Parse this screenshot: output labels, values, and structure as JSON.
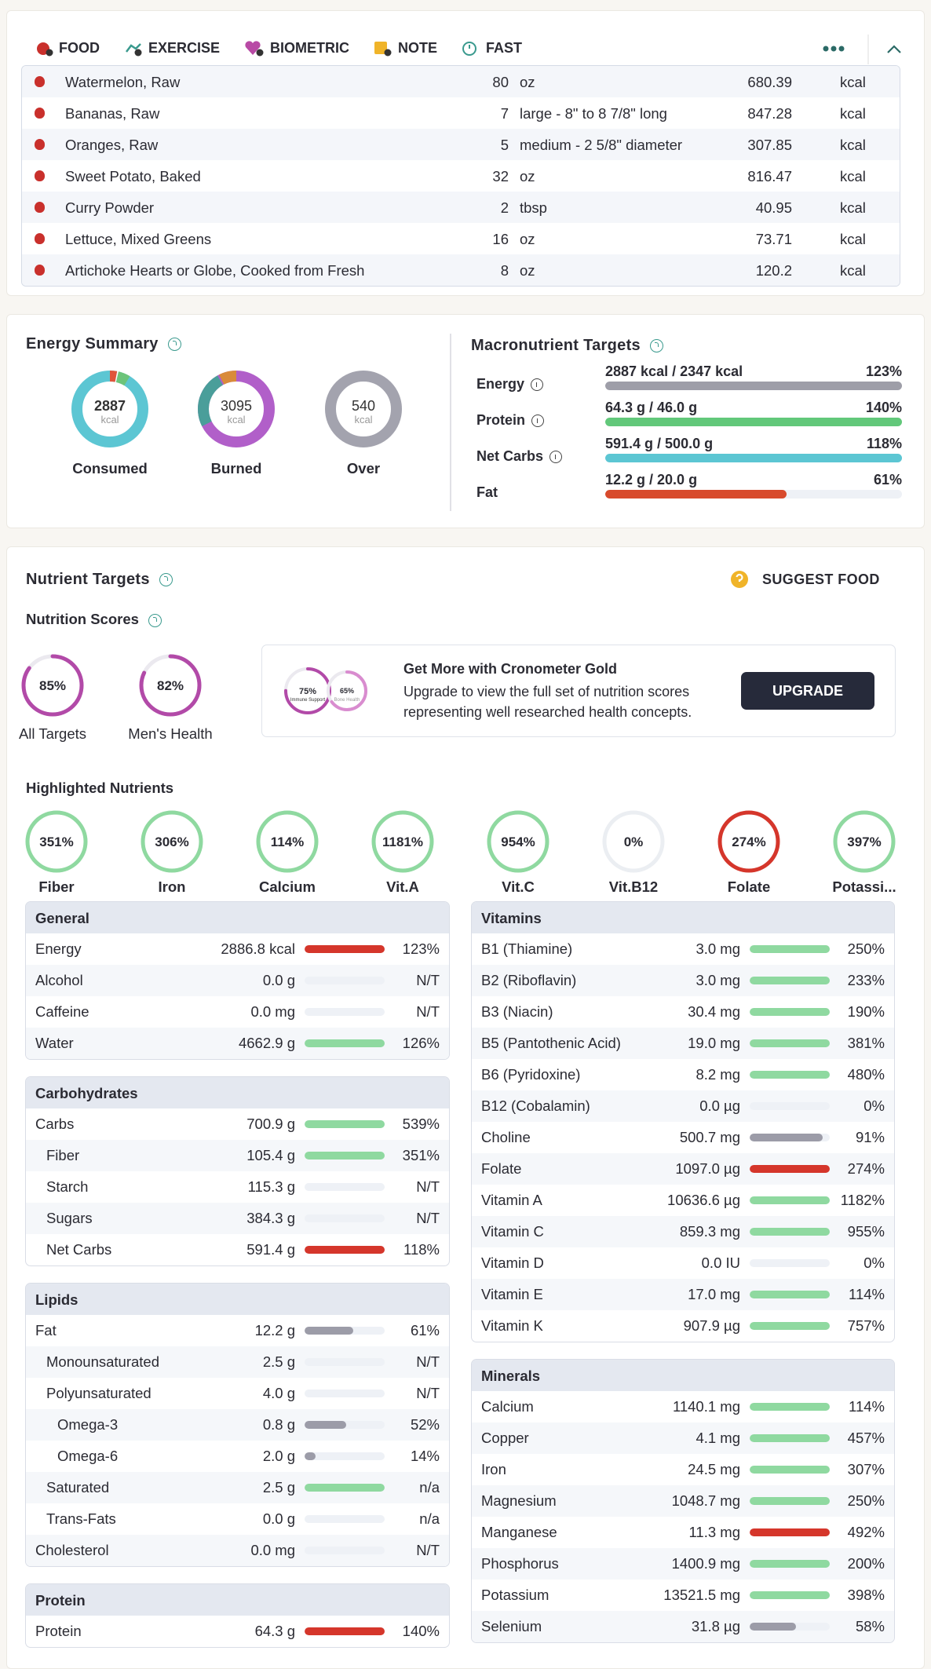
{
  "tabs": [
    "FOOD",
    "EXERCISE",
    "BIOMETRIC",
    "NOTE",
    "FAST"
  ],
  "foods": [
    {
      "name": "Watermelon, Raw",
      "amount": "80",
      "unit": "oz",
      "energy": "680.39",
      "energy_unit": "kcal"
    },
    {
      "name": "Bananas, Raw",
      "amount": "7",
      "unit": "large - 8\" to 8 7/8\" long",
      "energy": "847.28",
      "energy_unit": "kcal"
    },
    {
      "name": "Oranges, Raw",
      "amount": "5",
      "unit": "medium - 2 5/8\" diameter",
      "energy": "307.85",
      "energy_unit": "kcal"
    },
    {
      "name": "Sweet Potato, Baked",
      "amount": "32",
      "unit": "oz",
      "energy": "816.47",
      "energy_unit": "kcal"
    },
    {
      "name": "Curry Powder",
      "amount": "2",
      "unit": "tbsp",
      "energy": "40.95",
      "energy_unit": "kcal"
    },
    {
      "name": "Lettuce, Mixed Greens",
      "amount": "16",
      "unit": "oz",
      "energy": "73.71",
      "energy_unit": "kcal"
    },
    {
      "name": "Artichoke Hearts or Globe, Cooked from Fresh",
      "amount": "8",
      "unit": "oz",
      "energy": "120.2",
      "energy_unit": "kcal"
    }
  ],
  "energy_summary": {
    "title": "Energy Summary",
    "rings": [
      {
        "value": "2887",
        "unit": "kcal",
        "label": "Consumed"
      },
      {
        "value": "3095",
        "unit": "kcal",
        "label": "Burned"
      },
      {
        "value": "540",
        "unit": "kcal",
        "label": "Over"
      }
    ]
  },
  "macros": {
    "title": "Macronutrient Targets",
    "rows": [
      {
        "name": "Energy",
        "detail": "2887 kcal / 2347 kcal",
        "pct": 123,
        "pct_label": "123%",
        "color": "#9e9ea8"
      },
      {
        "name": "Protein",
        "detail": "64.3 g / 46.0 g",
        "pct": 140,
        "pct_label": "140%",
        "color": "#62c87a"
      },
      {
        "name": "Net Carbs",
        "detail": "591.4 g / 500.0 g",
        "pct": 118,
        "pct_label": "118%",
        "color": "#5cc6d3"
      },
      {
        "name": "Fat",
        "detail": "12.2 g / 20.0 g",
        "pct": 61,
        "pct_label": "61%",
        "color": "#d84a2c"
      }
    ]
  },
  "nutrient_targets": {
    "title": "Nutrient Targets",
    "suggest": "SUGGEST FOOD",
    "scores_title": "Nutrition Scores",
    "scores": [
      {
        "pct": 85,
        "pct_label": "85%",
        "label": "All Targets"
      },
      {
        "pct": 82,
        "pct_label": "82%",
        "label": "Men's Health"
      }
    ],
    "promo": {
      "title": "Get More with Cronometer Gold",
      "text": "Upgrade to view the full set of nutrition scores representing well researched health concepts.",
      "button": "UPGRADE",
      "preview": [
        {
          "pct": 75,
          "pct_label": "75%",
          "label": "Immune Support"
        },
        {
          "pct": 65,
          "pct_label": "65%",
          "label": "Bone Health"
        }
      ]
    },
    "highlighted_title": "Highlighted Nutrients",
    "highlighted": [
      {
        "name": "Fiber",
        "pct": 351,
        "pct_label": "351%",
        "color": "#8fd9a0"
      },
      {
        "name": "Iron",
        "pct": 306,
        "pct_label": "306%",
        "color": "#8fd9a0"
      },
      {
        "name": "Calcium",
        "pct": 114,
        "pct_label": "114%",
        "color": "#8fd9a0"
      },
      {
        "name": "Vit.A",
        "pct": 1181,
        "pct_label": "1181%",
        "color": "#8fd9a0"
      },
      {
        "name": "Vit.C",
        "pct": 954,
        "pct_label": "954%",
        "color": "#8fd9a0"
      },
      {
        "name": "Vit.B12",
        "pct": 0,
        "pct_label": "0%",
        "color": "#8fd9a0"
      },
      {
        "name": "Folate",
        "pct": 274,
        "pct_label": "274%",
        "color": "#d5362b"
      },
      {
        "name": "Potassi...",
        "pct": 397,
        "pct_label": "397%",
        "color": "#8fd9a0"
      }
    ]
  },
  "tables": [
    {
      "title": "General",
      "column": "left",
      "rows": [
        {
          "name": "Energy",
          "amount": "2886.8 kcal",
          "pct": 123,
          "pct_label": "123%",
          "color": "#d5362b",
          "indent": 0
        },
        {
          "name": "Alcohol",
          "amount": "0.0 g",
          "pct": null,
          "pct_label": "N/T",
          "color": "#8fd9a0",
          "indent": 0
        },
        {
          "name": "Caffeine",
          "amount": "0.0 mg",
          "pct": null,
          "pct_label": "N/T",
          "color": "#8fd9a0",
          "indent": 0
        },
        {
          "name": "Water",
          "amount": "4662.9 g",
          "pct": 126,
          "pct_label": "126%",
          "color": "#8fd9a0",
          "indent": 0
        }
      ]
    },
    {
      "title": "Carbohydrates",
      "column": "left",
      "rows": [
        {
          "name": "Carbs",
          "amount": "700.9 g",
          "pct": 539,
          "pct_label": "539%",
          "color": "#8fd9a0",
          "indent": 0
        },
        {
          "name": "Fiber",
          "amount": "105.4 g",
          "pct": 351,
          "pct_label": "351%",
          "color": "#8fd9a0",
          "indent": 1
        },
        {
          "name": "Starch",
          "amount": "115.3 g",
          "pct": null,
          "pct_label": "N/T",
          "color": "#8fd9a0",
          "indent": 1
        },
        {
          "name": "Sugars",
          "amount": "384.3 g",
          "pct": null,
          "pct_label": "N/T",
          "color": "#8fd9a0",
          "indent": 1
        },
        {
          "name": "Net Carbs",
          "amount": "591.4 g",
          "pct": 118,
          "pct_label": "118%",
          "color": "#d5362b",
          "indent": 1
        }
      ]
    },
    {
      "title": "Lipids",
      "column": "left",
      "rows": [
        {
          "name": "Fat",
          "amount": "12.2 g",
          "pct": 61,
          "pct_label": "61%",
          "color": "#9c9ca8",
          "indent": 0
        },
        {
          "name": "Monounsaturated",
          "amount": "2.5 g",
          "pct": null,
          "pct_label": "N/T",
          "color": "#8fd9a0",
          "indent": 1
        },
        {
          "name": "Polyunsaturated",
          "amount": "4.0 g",
          "pct": null,
          "pct_label": "N/T",
          "color": "#8fd9a0",
          "indent": 1
        },
        {
          "name": "Omega-3",
          "amount": "0.8 g",
          "pct": 52,
          "pct_label": "52%",
          "color": "#9c9ca8",
          "indent": 2
        },
        {
          "name": "Omega-6",
          "amount": "2.0 g",
          "pct": 14,
          "pct_label": "14%",
          "color": "#9c9ca8",
          "indent": 2
        },
        {
          "name": "Saturated",
          "amount": "2.5 g",
          "pct": null,
          "pct_label": "n/a",
          "color": "#8fd9a0",
          "indent": 1,
          "full_bar": true
        },
        {
          "name": "Trans-Fats",
          "amount": "0.0 g",
          "pct": null,
          "pct_label": "n/a",
          "color": "#8fd9a0",
          "indent": 1
        },
        {
          "name": "Cholesterol",
          "amount": "0.0 mg",
          "pct": null,
          "pct_label": "N/T",
          "color": "#8fd9a0",
          "indent": 0
        }
      ]
    },
    {
      "title": "Protein",
      "column": "left",
      "rows": [
        {
          "name": "Protein",
          "amount": "64.3 g",
          "pct": 140,
          "pct_label": "140%",
          "color": "#d5362b",
          "indent": 0
        }
      ]
    },
    {
      "title": "Vitamins",
      "column": "right",
      "rows": [
        {
          "name": "B1 (Thiamine)",
          "amount": "3.0 mg",
          "pct": 250,
          "pct_label": "250%",
          "color": "#8fd9a0",
          "indent": 0
        },
        {
          "name": "B2 (Riboflavin)",
          "amount": "3.0 mg",
          "pct": 233,
          "pct_label": "233%",
          "color": "#8fd9a0",
          "indent": 0
        },
        {
          "name": "B3 (Niacin)",
          "amount": "30.4 mg",
          "pct": 190,
          "pct_label": "190%",
          "color": "#8fd9a0",
          "indent": 0
        },
        {
          "name": "B5 (Pantothenic Acid)",
          "amount": "19.0 mg",
          "pct": 381,
          "pct_label": "381%",
          "color": "#8fd9a0",
          "indent": 0
        },
        {
          "name": "B6 (Pyridoxine)",
          "amount": "8.2 mg",
          "pct": 480,
          "pct_label": "480%",
          "color": "#8fd9a0",
          "indent": 0
        },
        {
          "name": "B12 (Cobalamin)",
          "amount": "0.0 µg",
          "pct": 0,
          "pct_label": "0%",
          "color": "#8fd9a0",
          "indent": 0
        },
        {
          "name": "Choline",
          "amount": "500.7 mg",
          "pct": 91,
          "pct_label": "91%",
          "color": "#9c9ca8",
          "indent": 0
        },
        {
          "name": "Folate",
          "amount": "1097.0 µg",
          "pct": 274,
          "pct_label": "274%",
          "color": "#d5362b",
          "indent": 0
        },
        {
          "name": "Vitamin A",
          "amount": "10636.6 µg",
          "pct": 1182,
          "pct_label": "1182%",
          "color": "#8fd9a0",
          "indent": 0
        },
        {
          "name": "Vitamin C",
          "amount": "859.3 mg",
          "pct": 955,
          "pct_label": "955%",
          "color": "#8fd9a0",
          "indent": 0
        },
        {
          "name": "Vitamin D",
          "amount": "0.0 IU",
          "pct": 0,
          "pct_label": "0%",
          "color": "#8fd9a0",
          "indent": 0
        },
        {
          "name": "Vitamin E",
          "amount": "17.0 mg",
          "pct": 114,
          "pct_label": "114%",
          "color": "#8fd9a0",
          "indent": 0
        },
        {
          "name": "Vitamin K",
          "amount": "907.9 µg",
          "pct": 757,
          "pct_label": "757%",
          "color": "#8fd9a0",
          "indent": 0
        }
      ]
    },
    {
      "title": "Minerals",
      "column": "right",
      "rows": [
        {
          "name": "Calcium",
          "amount": "1140.1 mg",
          "pct": 114,
          "pct_label": "114%",
          "color": "#8fd9a0",
          "indent": 0
        },
        {
          "name": "Copper",
          "amount": "4.1 mg",
          "pct": 457,
          "pct_label": "457%",
          "color": "#8fd9a0",
          "indent": 0
        },
        {
          "name": "Iron",
          "amount": "24.5 mg",
          "pct": 307,
          "pct_label": "307%",
          "color": "#8fd9a0",
          "indent": 0
        },
        {
          "name": "Magnesium",
          "amount": "1048.7 mg",
          "pct": 250,
          "pct_label": "250%",
          "color": "#8fd9a0",
          "indent": 0
        },
        {
          "name": "Manganese",
          "amount": "11.3 mg",
          "pct": 492,
          "pct_label": "492%",
          "color": "#d5362b",
          "indent": 0
        },
        {
          "name": "Phosphorus",
          "amount": "1400.9 mg",
          "pct": 200,
          "pct_label": "200%",
          "color": "#8fd9a0",
          "indent": 0
        },
        {
          "name": "Potassium",
          "amount": "13521.5 mg",
          "pct": 398,
          "pct_label": "398%",
          "color": "#8fd9a0",
          "indent": 0
        },
        {
          "name": "Selenium",
          "amount": "31.8 µg",
          "pct": 58,
          "pct_label": "58%",
          "color": "#9c9ca8",
          "indent": 0
        }
      ]
    }
  ]
}
